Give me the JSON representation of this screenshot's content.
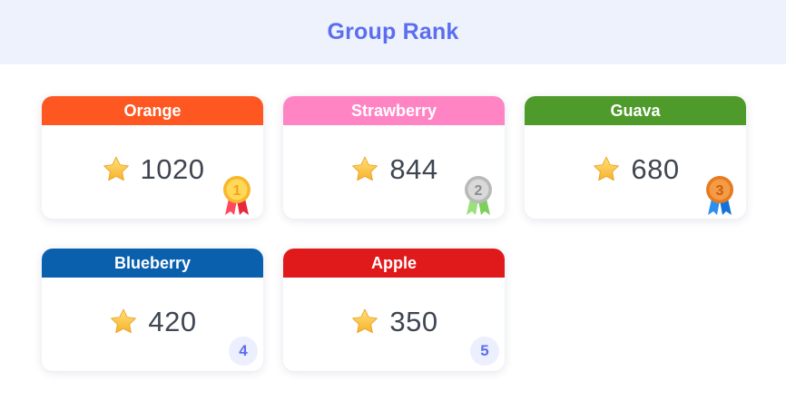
{
  "header": {
    "title": "Group Rank"
  },
  "cards": [
    {
      "name": "Orange",
      "score": "1020",
      "rank": "1",
      "color": "#ff5722"
    },
    {
      "name": "Strawberry",
      "score": "844",
      "rank": "2",
      "color": "#ff84c4"
    },
    {
      "name": "Guava",
      "score": "680",
      "rank": "3",
      "color": "#4e9a2a"
    },
    {
      "name": "Blueberry",
      "score": "420",
      "rank": "4",
      "color": "#0b60ad"
    },
    {
      "name": "Apple",
      "score": "350",
      "rank": "5",
      "color": "#e0191b"
    }
  ],
  "icons": {
    "score": "star-icon",
    "top3": "medal-icon"
  },
  "colors": {
    "accent": "#5b6ef0",
    "header_bg": "#eef2fd"
  }
}
